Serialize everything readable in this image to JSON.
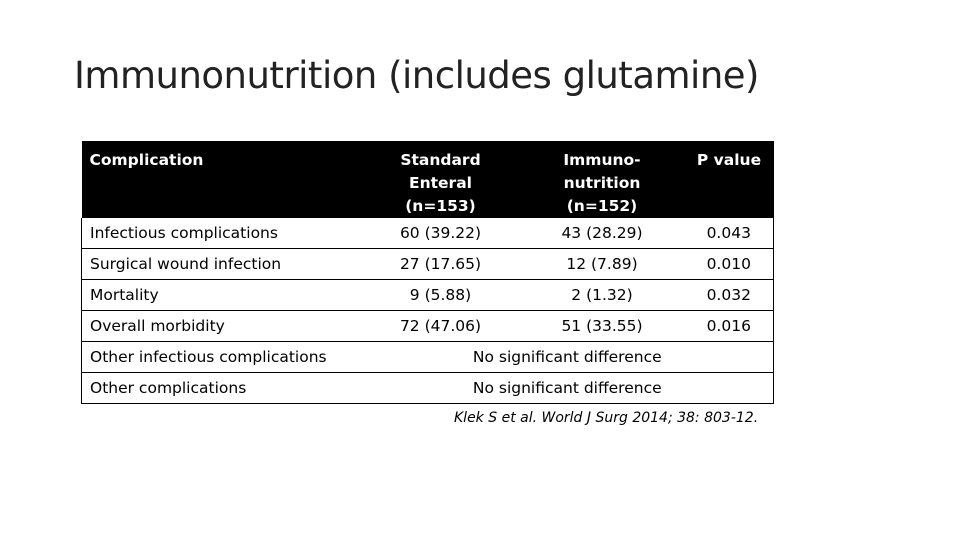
{
  "slide": {
    "title": "Immunonutrition (includes glutamine)",
    "citation": "Klek S et al. World J Surg 2014; 38: 803-12."
  },
  "table": {
    "headers": {
      "complication": "Complication",
      "standard_line1": "Standard Enteral",
      "standard_line2": "(n=153)",
      "immuno_line1": "Immuno-nutrition",
      "immuno_line2": "(n=152)",
      "pvalue": "P value"
    },
    "rows": [
      {
        "name": "Infectious complications",
        "standard": "60 (39.22)",
        "immuno": "43 (28.29)",
        "p": "0.043"
      },
      {
        "name": "Surgical wound infection",
        "standard": "27 (17.65)",
        "immuno": "12 (7.89)",
        "p": "0.010"
      },
      {
        "name": "Mortality",
        "standard": "9 (5.88)",
        "immuno": "2 (1.32)",
        "p": "0.032"
      },
      {
        "name": "Overall morbidity",
        "standard": "72 (47.06)",
        "immuno": "51 (33.55)",
        "p": "0.016"
      }
    ],
    "merged_rows": [
      {
        "name": "Other infectious complications",
        "note": "No significant difference"
      },
      {
        "name": "Other complications",
        "note": "No significant difference"
      }
    ]
  }
}
